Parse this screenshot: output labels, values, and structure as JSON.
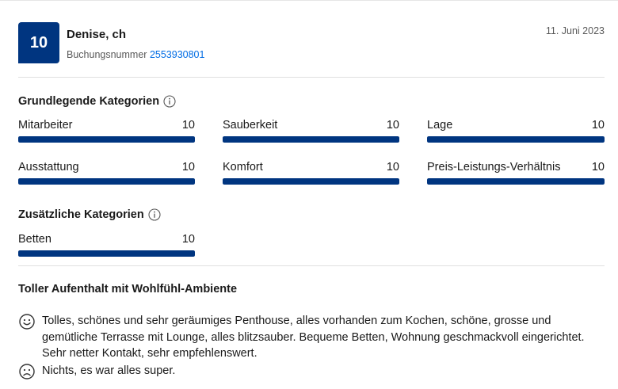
{
  "review": {
    "score": "10",
    "reviewer_name": "Denise, ch",
    "booking_label": "Buchungsnummer",
    "booking_number": "2553930801",
    "date": "11. Juni 2023"
  },
  "basic_categories": {
    "title": "Grundlegende Kategorien",
    "info_icon": "info-icon",
    "items": [
      {
        "label": "Mitarbeiter",
        "score": "10",
        "fraction": 1.0
      },
      {
        "label": "Sauberkeit",
        "score": "10",
        "fraction": 1.0
      },
      {
        "label": "Lage",
        "score": "10",
        "fraction": 1.0
      },
      {
        "label": "Ausstattung",
        "score": "10",
        "fraction": 1.0
      },
      {
        "label": "Komfort",
        "score": "10",
        "fraction": 1.0
      },
      {
        "label": "Preis-Leistungs-Verhältnis",
        "score": "10",
        "fraction": 1.0
      }
    ]
  },
  "extra_categories": {
    "title": "Zusätzliche Kategorien",
    "info_icon": "info-icon",
    "items": [
      {
        "label": "Betten",
        "score": "10",
        "fraction": 1.0
      }
    ]
  },
  "review_body": {
    "title": "Toller Aufenthalt mit Wohlfühl-Ambiente",
    "positive": "Tolles, schönes und sehr geräumiges Penthouse, alles vorhanden zum Kochen, schöne, grosse und gemütliche Terrasse mit Lounge, alles blitzsauber. Bequeme Betten, Wohnung geschmackvoll eingerichtet. Sehr netter Kontakt, sehr empfehlenswert.",
    "positive_icon": "smiley-face-icon",
    "negative": "Nichts, es war alles super.",
    "negative_icon": "sad-face-icon"
  },
  "colors": {
    "brand_blue": "#003580",
    "link_blue": "#006ce4",
    "bar_track": "#e7e7e7"
  }
}
